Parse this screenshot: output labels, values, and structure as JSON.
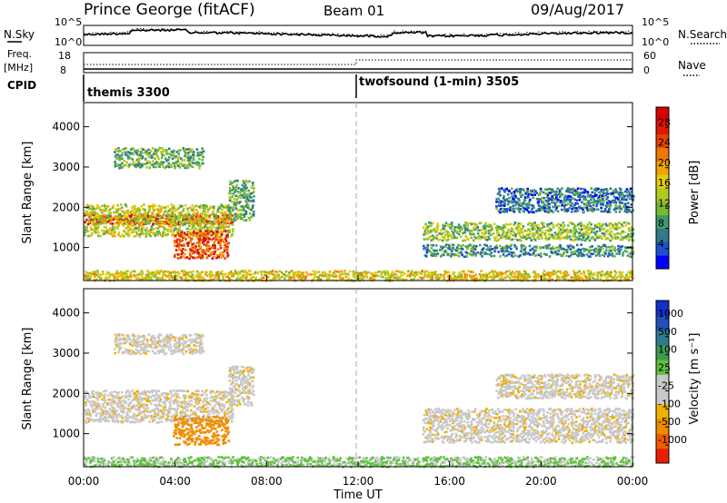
{
  "header": {
    "station": "Prince George (fitACF)",
    "beam": "Beam 01",
    "date": "09/Aug/2017"
  },
  "noise_panel": {
    "left_label": "N.Sky",
    "right_label": "N.Search",
    "tick_top": "10^5",
    "tick_bottom": "10^0",
    "right_tick_top": "10^5",
    "right_tick_bottom": "10^0"
  },
  "freq_panel": {
    "left_label_1": "Freq.",
    "left_label_2": "[MHz]",
    "right_label": "Nave",
    "left_ticks": [
      "18",
      "8"
    ],
    "right_ticks": [
      "60",
      "0"
    ]
  },
  "cpid_panel": {
    "label": "CPID",
    "segments": [
      {
        "start_hour": 0,
        "text": "themis 3300"
      },
      {
        "start_hour": 12,
        "text": "twofsound (1-min) 3505"
      }
    ]
  },
  "axes": {
    "ylabel": "Slant Range [km]",
    "xlabel": "Time UT",
    "y_ticks": [
      "1000",
      "2000",
      "3000",
      "4000"
    ],
    "x_ticks": [
      "00:00",
      "04:00",
      "08:00",
      "12:00",
      "16:00",
      "20:00",
      "00:00"
    ]
  },
  "colorbars": {
    "power": {
      "label": "Power [dB]",
      "ticks": [
        "4",
        "8",
        "12",
        "16",
        "20",
        "24",
        "28"
      ],
      "colors": [
        "#0000ff",
        "#1e4fd0",
        "#2f7a8c",
        "#3f9a6a",
        "#7ab830",
        "#b0c820",
        "#e2cc10",
        "#f0a400",
        "#f07800",
        "#e84400",
        "#e01800",
        "#d80000"
      ]
    },
    "velocity": {
      "label": "Velocity [m s⁻¹]",
      "ticks": [
        "1000",
        "500",
        "100",
        "25",
        "-25",
        "-100",
        "-500",
        "-1000"
      ],
      "colors": [
        "#1030c8",
        "#2050b8",
        "#2f7a8c",
        "#3f9a50",
        "#60c040",
        "#c8c8c8",
        "#c8c8c8",
        "#f0b000",
        "#f08c00",
        "#f05c00",
        "#e82000"
      ]
    }
  },
  "chart_data": {
    "type": "heatmap",
    "title": "Prince George (fitACF)",
    "xlabel": "Time UT",
    "ylabel": "Slant Range [km]",
    "xlim": [
      0,
      24
    ],
    "ylim": [
      180,
      4600
    ],
    "regions_power": [
      {
        "t0": 0.0,
        "t1": 6.5,
        "r0": 1600,
        "r1": 1850,
        "db": 26
      },
      {
        "t0": 0.0,
        "t1": 6.5,
        "r0": 1300,
        "r1": 2100,
        "db": 14
      },
      {
        "t0": 3.9,
        "t1": 6.3,
        "r0": 750,
        "r1": 1450,
        "db": 24
      },
      {
        "t0": 6.3,
        "t1": 7.4,
        "r0": 1700,
        "r1": 2700,
        "db": 10
      },
      {
        "t0": 1.3,
        "t1": 5.2,
        "r0": 3000,
        "r1": 3500,
        "db": 10
      },
      {
        "t0": 14.8,
        "t1": 24.0,
        "r0": 1200,
        "r1": 1650,
        "db": 12
      },
      {
        "t0": 14.8,
        "t1": 24.0,
        "r0": 800,
        "r1": 1100,
        "db": 8
      },
      {
        "t0": 18.0,
        "t1": 24.0,
        "r0": 1900,
        "r1": 2500,
        "db": 6
      },
      {
        "t0": 0.0,
        "t1": 24.0,
        "r0": 200,
        "r1": 450,
        "db": 16
      }
    ],
    "regions_velocity": [
      {
        "t0": 0.0,
        "t1": 6.5,
        "r0": 1300,
        "r1": 2100,
        "v": 0
      },
      {
        "t0": 3.9,
        "t1": 6.3,
        "r0": 750,
        "r1": 1450,
        "v": -150
      },
      {
        "t0": 6.3,
        "t1": 7.4,
        "r0": 1700,
        "r1": 2700,
        "v": 0
      },
      {
        "t0": 1.3,
        "t1": 5.2,
        "r0": 3000,
        "r1": 3500,
        "v": 0
      },
      {
        "t0": 14.8,
        "t1": 24.0,
        "r0": 800,
        "r1": 1650,
        "v": 0
      },
      {
        "t0": 18.0,
        "t1": 24.0,
        "r0": 1900,
        "r1": 2500,
        "v": 0
      },
      {
        "t0": 0.0,
        "t1": 24.0,
        "r0": 200,
        "r1": 450,
        "v": 60
      }
    ]
  }
}
